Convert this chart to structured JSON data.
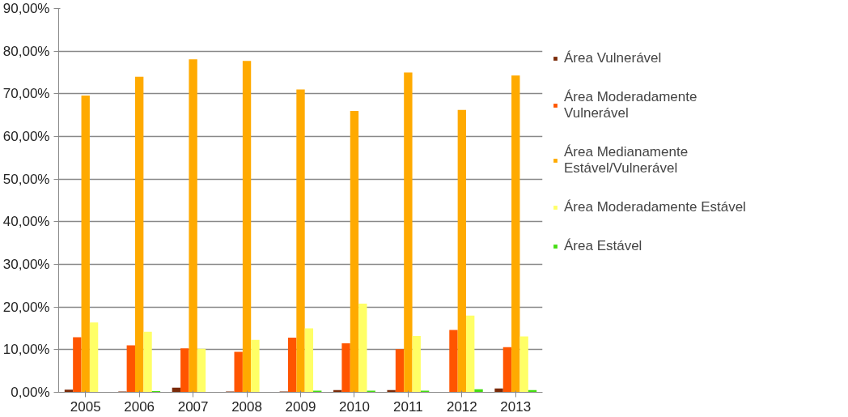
{
  "chart_data": {
    "type": "bar",
    "categories": [
      "2005",
      "2006",
      "2007",
      "2008",
      "2009",
      "2010",
      "2011",
      "2012",
      "2013"
    ],
    "series": [
      {
        "name": "Área Vulnerável",
        "color": "#7a2a08",
        "values": [
          0.6,
          0.2,
          1.1,
          0.2,
          0.2,
          0.5,
          0.5,
          0,
          0.9
        ]
      },
      {
        "name": "Área Moderadamente Vulnerável",
        "color": "#ff5500",
        "values": [
          12.9,
          11.0,
          10.3,
          9.5,
          12.8,
          11.5,
          10.1,
          14.6,
          10.6
        ]
      },
      {
        "name": "Área Medianamente Estável/Vulnerável",
        "color": "#ffaa00",
        "values": [
          69.6,
          74.0,
          78.1,
          77.7,
          71.0,
          66.0,
          75.0,
          66.2,
          74.3
        ]
      },
      {
        "name": "Área Moderadamente Estável",
        "color": "#ffff66",
        "values": [
          16.4,
          14.2,
          10.2,
          12.3,
          15.0,
          20.8,
          13.2,
          18.0,
          13.1
        ]
      },
      {
        "name": "Área Estável",
        "color": "#44dd11",
        "values": [
          0,
          0.3,
          0,
          0,
          0.4,
          0.4,
          0.4,
          0.7,
          0.5
        ]
      }
    ],
    "ylim": [
      0,
      90
    ],
    "yticks": [
      {
        "value": 0,
        "label": "0,00%"
      },
      {
        "value": 10,
        "label": "10,00%"
      },
      {
        "value": 20,
        "label": "20,00%"
      },
      {
        "value": 30,
        "label": "30,00%"
      },
      {
        "value": 40,
        "label": "40,00%"
      },
      {
        "value": 50,
        "label": "50,00%"
      },
      {
        "value": 60,
        "label": "60,00%"
      },
      {
        "value": 70,
        "label": "70,00%"
      },
      {
        "value": 80,
        "label": "80,00%"
      },
      {
        "value": 90,
        "label": "90,00%"
      }
    ],
    "grid": "y",
    "legend": "right"
  }
}
